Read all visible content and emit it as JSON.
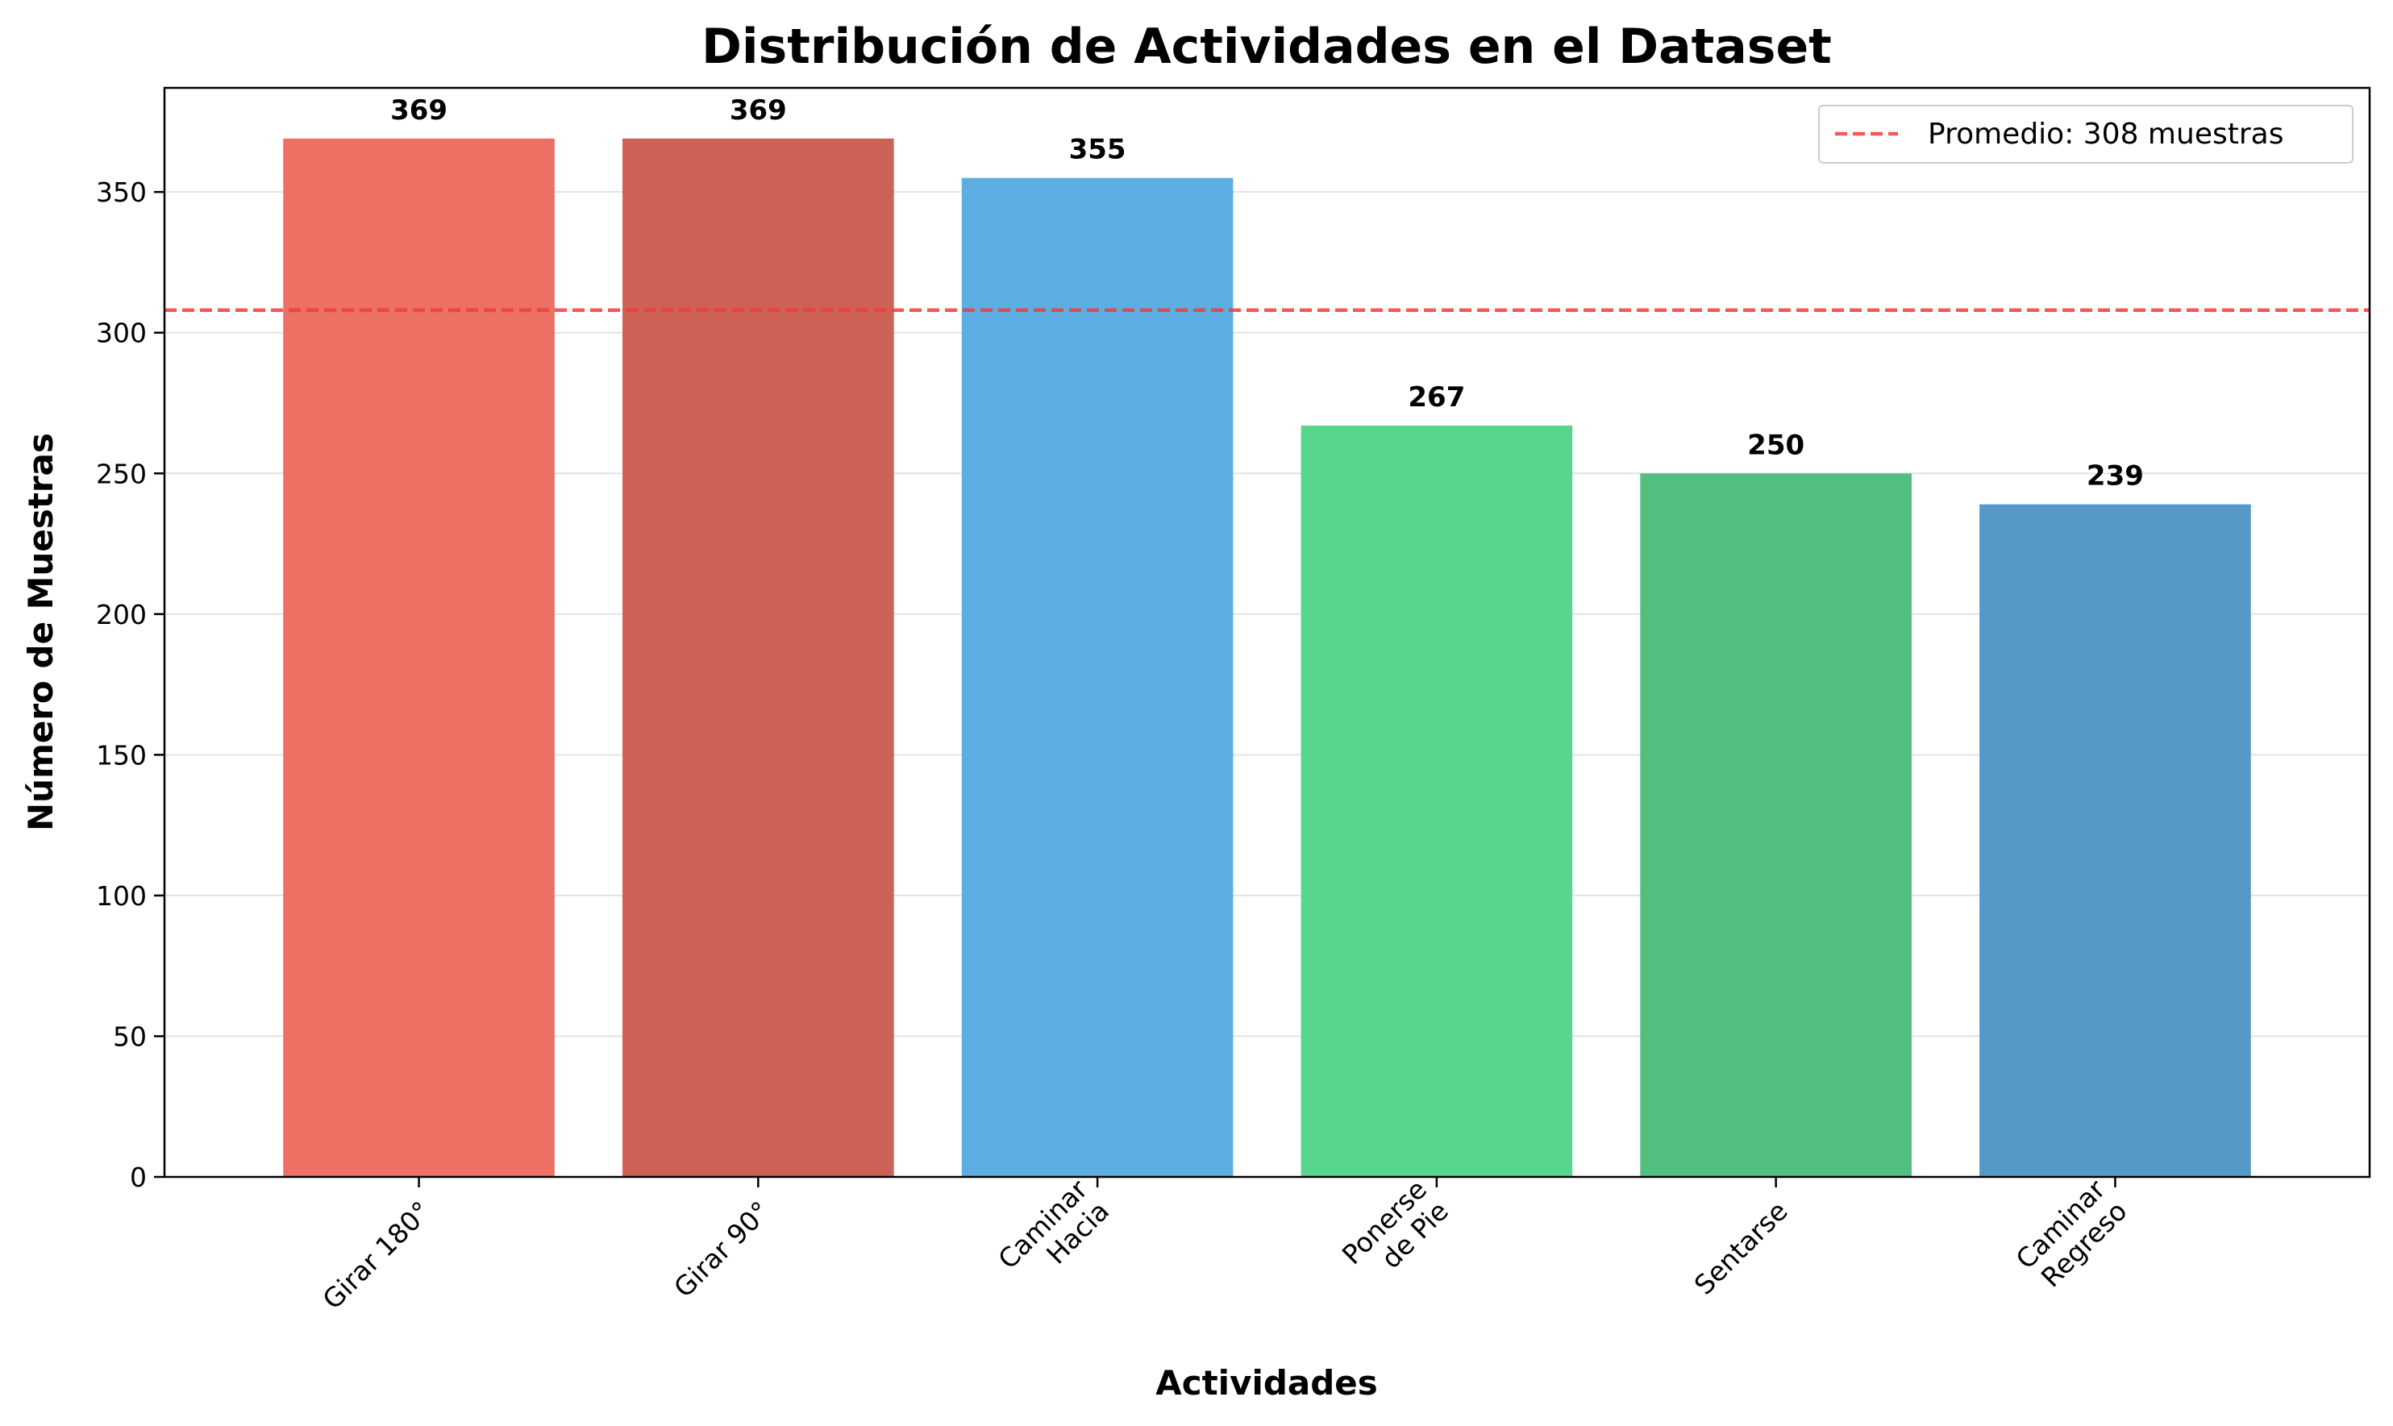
{
  "chart_data": {
    "type": "bar",
    "title": "Distribución de Actividades en el Dataset",
    "xlabel": "Actividades",
    "ylabel": "Número de Muestras",
    "categories": [
      [
        "Girar 180°"
      ],
      [
        "Girar 90°"
      ],
      [
        "Caminar",
        "Hacia"
      ],
      [
        "Ponerse",
        "de Pie"
      ],
      [
        "Sentarse"
      ],
      [
        "Caminar",
        "Regreso"
      ]
    ],
    "values": [
      369,
      369,
      355,
      267,
      250,
      239
    ],
    "data_labels": [
      "369",
      "369",
      "355",
      "267",
      "250",
      "239"
    ],
    "colors": [
      "#ec7063",
      "#cd6155",
      "#5dade2",
      "#58d68d",
      "#52be80",
      "#5499c7"
    ],
    "ylim": [
      0,
      387
    ],
    "yticks": [
      0,
      50,
      100,
      150,
      200,
      250,
      300,
      350
    ],
    "grid": "y",
    "reference_line": {
      "value": 308,
      "label": "Promedio: 308 muestras",
      "color": "#f03c3c",
      "style": "dashed"
    },
    "legend": {
      "position": "top-right"
    }
  }
}
